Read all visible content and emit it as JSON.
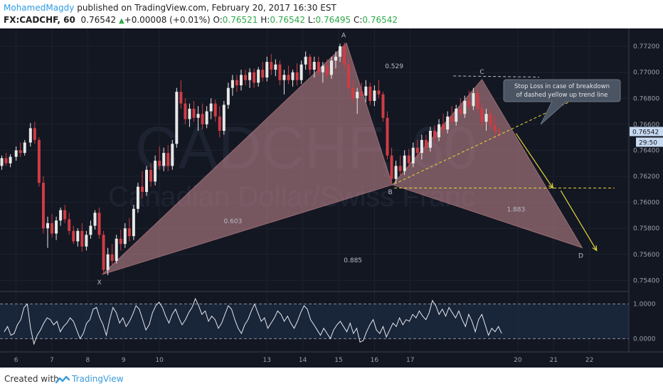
{
  "header": {
    "author": "MohamedMagdy",
    "published_text": " published on TradingView.com, February 20, 2017 16:30 EST",
    "symbol": "FX:CADCHF, 60",
    "last": "0.76542",
    "change": "+0.00008 (+0.01%)",
    "open_label": "O:",
    "open": "0.76521",
    "high_label": "H:",
    "high": "0.76542",
    "low_label": "L:",
    "low": "0.76495",
    "close_label": "C:",
    "close": "0.76542"
  },
  "footer": {
    "created_with": "Created with",
    "brand": "TradingView"
  },
  "colors": {
    "background": "#131722",
    "pattern_fill": "#c98a91",
    "candle_up": "#e8e8e8",
    "candle_down": "#d03c44",
    "trend_line": "#e6d63a",
    "price_tag": "#c8daf0"
  },
  "chart_data": {
    "type": "candlestick",
    "watermark": {
      "symbol": "CADCHF, 60",
      "name": "Canadian Dollar/Swiss Franc"
    },
    "x_ticks": [
      {
        "label": "6",
        "t": 6
      },
      {
        "label": "7",
        "t": 7
      },
      {
        "label": "8",
        "t": 8
      },
      {
        "label": "9",
        "t": 9
      },
      {
        "label": "10",
        "t": 10
      },
      {
        "label": "13",
        "t": 13
      },
      {
        "label": "14",
        "t": 14
      },
      {
        "label": "15",
        "t": 15
      },
      {
        "label": "16",
        "t": 16
      },
      {
        "label": "17",
        "t": 17
      },
      {
        "label": "20",
        "t": 20
      },
      {
        "label": "21",
        "t": 21
      },
      {
        "label": "22",
        "t": 22
      }
    ],
    "xlim": [
      5.55,
      23.1
    ],
    "ylim": [
      0.7532,
      0.7731
    ],
    "y_ticks": [
      "0.77200",
      "0.77000",
      "0.76800",
      "0.76600",
      "0.76400",
      "0.76200",
      "0.76000",
      "0.75800",
      "0.75600",
      "0.75400"
    ],
    "last_price_label": "0.76542",
    "last_price": 0.76542,
    "countdown_label": "29:50",
    "candles": [
      [
        5.6,
        0.7628,
        0.7636,
        0.7625,
        0.7634
      ],
      [
        5.72,
        0.7634,
        0.7638,
        0.7628,
        0.763
      ],
      [
        5.84,
        0.763,
        0.7637,
        0.7627,
        0.7635
      ],
      [
        6.0,
        0.7635,
        0.7643,
        0.7632,
        0.764
      ],
      [
        6.12,
        0.764,
        0.7646,
        0.7635,
        0.7638
      ],
      [
        6.24,
        0.7638,
        0.7648,
        0.7636,
        0.7646
      ],
      [
        6.4,
        0.7646,
        0.7661,
        0.7643,
        0.7657
      ],
      [
        6.52,
        0.7657,
        0.7662,
        0.7645,
        0.7648
      ],
      [
        6.64,
        0.7648,
        0.765,
        0.7612,
        0.7615
      ],
      [
        6.76,
        0.7615,
        0.762,
        0.7576,
        0.758
      ],
      [
        6.88,
        0.758,
        0.7589,
        0.7565,
        0.7584
      ],
      [
        7.0,
        0.7584,
        0.7591,
        0.7573,
        0.7576
      ],
      [
        7.12,
        0.7576,
        0.7589,
        0.7571,
        0.7586
      ],
      [
        7.24,
        0.7586,
        0.7596,
        0.7582,
        0.7594
      ],
      [
        7.36,
        0.7594,
        0.7598,
        0.7584,
        0.7587
      ],
      [
        7.48,
        0.7587,
        0.7592,
        0.7575,
        0.7578
      ],
      [
        7.6,
        0.7578,
        0.7582,
        0.7568,
        0.757
      ],
      [
        7.72,
        0.757,
        0.758,
        0.7566,
        0.7578
      ],
      [
        7.84,
        0.7578,
        0.7584,
        0.7562,
        0.7566
      ],
      [
        7.96,
        0.7566,
        0.7578,
        0.7563,
        0.7575
      ],
      [
        8.08,
        0.7575,
        0.7586,
        0.7572,
        0.7582
      ],
      [
        8.2,
        0.7582,
        0.7594,
        0.7579,
        0.7592
      ],
      [
        8.32,
        0.7592,
        0.7596,
        0.7572,
        0.7575
      ],
      [
        8.44,
        0.7575,
        0.7578,
        0.7545,
        0.7548
      ],
      [
        8.56,
        0.7548,
        0.7565,
        0.7544,
        0.756
      ],
      [
        8.68,
        0.756,
        0.7568,
        0.7552,
        0.7555
      ],
      [
        8.8,
        0.7555,
        0.7575,
        0.7553,
        0.7572
      ],
      [
        8.92,
        0.7572,
        0.7579,
        0.7563,
        0.7568
      ],
      [
        9.04,
        0.7568,
        0.7584,
        0.7565,
        0.758
      ],
      [
        9.16,
        0.758,
        0.7588,
        0.757,
        0.7574
      ],
      [
        9.28,
        0.7574,
        0.7598,
        0.7571,
        0.7595
      ],
      [
        9.4,
        0.7595,
        0.7615,
        0.7592,
        0.7612
      ],
      [
        9.52,
        0.7612,
        0.7624,
        0.7603,
        0.7608
      ],
      [
        9.64,
        0.7608,
        0.7628,
        0.7605,
        0.7625
      ],
      [
        9.76,
        0.7625,
        0.763,
        0.7612,
        0.7616
      ],
      [
        9.88,
        0.7616,
        0.7636,
        0.7613,
        0.7632
      ],
      [
        10.0,
        0.7632,
        0.7643,
        0.7625,
        0.7628
      ],
      [
        10.12,
        0.7628,
        0.7642,
        0.7624,
        0.7638
      ],
      [
        10.24,
        0.7638,
        0.7644,
        0.7624,
        0.7628
      ],
      [
        10.36,
        0.7628,
        0.7648,
        0.7625,
        0.7645
      ],
      [
        10.48,
        0.7645,
        0.7688,
        0.7642,
        0.7685
      ],
      [
        10.6,
        0.7685,
        0.7694,
        0.7672,
        0.7676
      ],
      [
        10.72,
        0.7676,
        0.768,
        0.766,
        0.7664
      ],
      [
        10.84,
        0.7664,
        0.7676,
        0.7658,
        0.7672
      ],
      [
        10.96,
        0.7672,
        0.7678,
        0.7662,
        0.7665
      ],
      [
        11.08,
        0.7665,
        0.7674,
        0.7655,
        0.7668
      ],
      [
        11.2,
        0.7668,
        0.7676,
        0.7656,
        0.766
      ],
      [
        11.32,
        0.766,
        0.7674,
        0.7657,
        0.767
      ],
      [
        11.44,
        0.767,
        0.768,
        0.7664,
        0.7676
      ],
      [
        11.56,
        0.7676,
        0.7679,
        0.7662,
        0.7666
      ],
      [
        11.68,
        0.7666,
        0.7674,
        0.765,
        0.7655
      ],
      [
        11.8,
        0.7655,
        0.7678,
        0.7652,
        0.7675
      ],
      [
        11.92,
        0.7675,
        0.7692,
        0.7672,
        0.7688
      ],
      [
        12.04,
        0.7688,
        0.7698,
        0.7682,
        0.7694
      ],
      [
        12.16,
        0.7694,
        0.7698,
        0.7685,
        0.769
      ],
      [
        12.28,
        0.769,
        0.7702,
        0.7686,
        0.7698
      ],
      [
        12.4,
        0.7698,
        0.7702,
        0.769,
        0.7694
      ],
      [
        12.52,
        0.7694,
        0.7703,
        0.7688,
        0.77
      ],
      [
        12.64,
        0.77,
        0.7703,
        0.7688,
        0.7692
      ],
      [
        12.76,
        0.7692,
        0.7704,
        0.7689,
        0.7702
      ],
      [
        12.88,
        0.7702,
        0.7708,
        0.7693,
        0.7696
      ],
      [
        13.0,
        0.7696,
        0.7712,
        0.7693,
        0.7708
      ],
      [
        13.12,
        0.7708,
        0.7714,
        0.7698,
        0.7702
      ],
      [
        13.24,
        0.7702,
        0.771,
        0.7697,
        0.7706
      ],
      [
        13.36,
        0.7706,
        0.7709,
        0.769,
        0.7694
      ],
      [
        13.48,
        0.7694,
        0.7702,
        0.7683,
        0.7698
      ],
      [
        13.6,
        0.7698,
        0.7705,
        0.7691,
        0.7694
      ],
      [
        13.72,
        0.7694,
        0.7702,
        0.7689,
        0.77
      ],
      [
        13.84,
        0.77,
        0.7707,
        0.769,
        0.7694
      ],
      [
        13.96,
        0.7694,
        0.7709,
        0.7691,
        0.7706
      ],
      [
        14.08,
        0.7706,
        0.7716,
        0.7702,
        0.7712
      ],
      [
        14.2,
        0.7712,
        0.7714,
        0.7698,
        0.7702
      ],
      [
        14.32,
        0.7702,
        0.7712,
        0.7696,
        0.7708
      ],
      [
        14.44,
        0.7708,
        0.7712,
        0.7697,
        0.77
      ],
      [
        14.56,
        0.77,
        0.7708,
        0.7692,
        0.7705
      ],
      [
        14.68,
        0.7705,
        0.771,
        0.7695,
        0.7698
      ],
      [
        14.8,
        0.7698,
        0.7712,
        0.7695,
        0.7709
      ],
      [
        14.92,
        0.7709,
        0.7716,
        0.7703,
        0.7712
      ],
      [
        15.04,
        0.7712,
        0.7722,
        0.7708,
        0.772
      ],
      [
        15.16,
        0.772,
        0.7723,
        0.7702,
        0.7706
      ],
      [
        15.28,
        0.7706,
        0.771,
        0.7685,
        0.7688
      ],
      [
        15.4,
        0.7688,
        0.7694,
        0.7676,
        0.768
      ],
      [
        15.52,
        0.768,
        0.7688,
        0.7668,
        0.7685
      ],
      [
        15.64,
        0.7685,
        0.7692,
        0.7678,
        0.7682
      ],
      [
        15.76,
        0.7682,
        0.7694,
        0.7677,
        0.7689
      ],
      [
        15.88,
        0.7689,
        0.7692,
        0.7675,
        0.7678
      ],
      [
        16.0,
        0.7678,
        0.769,
        0.7674,
        0.7686
      ],
      [
        16.12,
        0.7686,
        0.7694,
        0.768,
        0.7683
      ],
      [
        16.24,
        0.7683,
        0.7685,
        0.7662,
        0.7665
      ],
      [
        16.36,
        0.7665,
        0.767,
        0.7633,
        0.7636
      ],
      [
        16.48,
        0.7636,
        0.7642,
        0.7614,
        0.7618
      ],
      [
        16.6,
        0.7618,
        0.7632,
        0.7615,
        0.7628
      ],
      [
        16.72,
        0.7628,
        0.7636,
        0.762,
        0.7624
      ],
      [
        16.84,
        0.7624,
        0.764,
        0.7621,
        0.7636
      ],
      [
        16.96,
        0.7636,
        0.7641,
        0.7626,
        0.763
      ],
      [
        17.08,
        0.763,
        0.7646,
        0.7627,
        0.7642
      ],
      [
        17.2,
        0.7642,
        0.7648,
        0.7634,
        0.7638
      ],
      [
        17.32,
        0.7638,
        0.7652,
        0.7633,
        0.7648
      ],
      [
        17.44,
        0.7648,
        0.7652,
        0.7638,
        0.7642
      ],
      [
        17.56,
        0.7642,
        0.7658,
        0.7639,
        0.7655
      ],
      [
        17.68,
        0.7655,
        0.7659,
        0.7646,
        0.765
      ],
      [
        17.8,
        0.765,
        0.7664,
        0.7647,
        0.766
      ],
      [
        17.92,
        0.766,
        0.7668,
        0.7652,
        0.7656
      ],
      [
        18.04,
        0.7656,
        0.767,
        0.7653,
        0.7666
      ],
      [
        18.16,
        0.7666,
        0.7674,
        0.766,
        0.7662
      ],
      [
        18.28,
        0.7662,
        0.7675,
        0.7659,
        0.7672
      ],
      [
        18.4,
        0.7672,
        0.768,
        0.7666,
        0.7668
      ],
      [
        18.52,
        0.7668,
        0.7682,
        0.7665,
        0.7678
      ],
      [
        18.64,
        0.7678,
        0.7686,
        0.7671,
        0.7674
      ],
      [
        18.76,
        0.7674,
        0.7688,
        0.7671,
        0.7684
      ],
      [
        18.88,
        0.7684,
        0.7688,
        0.7668,
        0.7672
      ],
      [
        19.0,
        0.7672,
        0.7676,
        0.7658,
        0.7662
      ],
      [
        19.12,
        0.7662,
        0.7672,
        0.7655,
        0.7668
      ],
      [
        19.24,
        0.7668,
        0.7672,
        0.7656,
        0.7659
      ],
      [
        19.36,
        0.7659,
        0.7666,
        0.765,
        0.7655
      ],
      [
        19.48,
        0.7655,
        0.7658,
        0.7649,
        0.7654
      ]
    ],
    "pattern": {
      "points": [
        {
          "label": "X",
          "t": 8.4,
          "price": 0.75445
        },
        {
          "label": "A",
          "t": 15.22,
          "price": 0.77225
        },
        {
          "label": "B",
          "t": 16.5,
          "price": 0.76135
        },
        {
          "label": "C",
          "t": 19.0,
          "price": 0.76945
        },
        {
          "label": "D",
          "t": 21.8,
          "price": 0.7565
        }
      ],
      "ratios": [
        {
          "label": "0.603",
          "t": 12.05,
          "price": 0.7584
        },
        {
          "label": "0.529",
          "t": 16.55,
          "price": 0.7703
        },
        {
          "label": "1.883",
          "t": 19.95,
          "price": 0.7593
        },
        {
          "label": "0.885",
          "t": 15.4,
          "price": 0.7554
        }
      ]
    },
    "trend_lines": [
      {
        "from": [
          16.55,
          0.7614
        ],
        "to": [
          21.5,
          0.7678
        ]
      },
      {
        "from": [
          16.55,
          0.7611
        ],
        "to": [
          22.7,
          0.7611
        ]
      },
      {
        "from": [
          18.2,
          0.76972
        ],
        "to": [
          20.6,
          0.76963
        ]
      }
    ],
    "arrows": [
      {
        "from": [
          19.95,
          0.7653
        ],
        "to": [
          20.98,
          0.7611
        ]
      },
      {
        "from": [
          21.2,
          0.7609
        ],
        "to": [
          22.2,
          0.7563
        ]
      }
    ],
    "annotation": {
      "lines": [
        "Stop Loss in case of breakdown",
        "of dashed yellow up trend line"
      ]
    },
    "oscillator": {
      "levels": [
        {
          "label": "1.0000",
          "value": 1
        },
        {
          "label": "0.0000",
          "value": 0
        }
      ],
      "ylim": [
        -0.38,
        1.36
      ],
      "values": [
        0.2,
        0.35,
        0.1,
        0.15,
        0.4,
        0.55,
        0.9,
        1.0,
        0.3,
        -0.15,
        0.1,
        0.25,
        0.45,
        0.6,
        0.55,
        0.4,
        0.5,
        0.2,
        0.35,
        0.45,
        0.6,
        0.5,
        0.25,
        0.0,
        0.15,
        0.45,
        0.55,
        0.85,
        0.9,
        0.6,
        0.4,
        0.1,
        0.55,
        0.9,
        0.75,
        0.45,
        0.6,
        0.35,
        0.5,
        0.7,
        0.95,
        0.85,
        0.55,
        0.25,
        0.4,
        0.75,
        0.95,
        1.05,
        0.9,
        0.65,
        0.45,
        0.7,
        0.85,
        0.6,
        0.4,
        0.55,
        0.75,
        0.9,
        1.15,
        0.95,
        0.7,
        0.8,
        0.5,
        0.65,
        0.55,
        0.3,
        0.45,
        0.7,
        0.95,
        0.85,
        0.55,
        0.3,
        0.15,
        0.4,
        0.55,
        0.8,
        1.0,
        0.75,
        0.5,
        0.6,
        0.3,
        0.45,
        0.6,
        0.8,
        0.7,
        0.5,
        0.65,
        0.45,
        0.3,
        0.5,
        0.75,
        0.95,
        0.85,
        0.55,
        0.4,
        0.25,
        0.1,
        0.3,
        0.15,
        0.0,
        0.25,
        0.4,
        0.5,
        0.35,
        0.2,
        0.45,
        0.15,
        0.3,
        -0.1,
        -0.05,
        0.2,
        0.4,
        0.55,
        0.25,
        0.15,
        0.35,
        0.05,
        0.25,
        0.45,
        0.35,
        0.6,
        0.4,
        0.55,
        0.5,
        0.7,
        0.6,
        0.8,
        0.65,
        0.55,
        0.75,
        1.1,
        0.95,
        0.7,
        0.85,
        0.65,
        0.9,
        0.75,
        0.6,
        0.8,
        0.55,
        0.35,
        0.7,
        0.5,
        0.2,
        0.55,
        0.7,
        0.4,
        0.1,
        0.3,
        0.2,
        0.35,
        0.15
      ]
    }
  }
}
